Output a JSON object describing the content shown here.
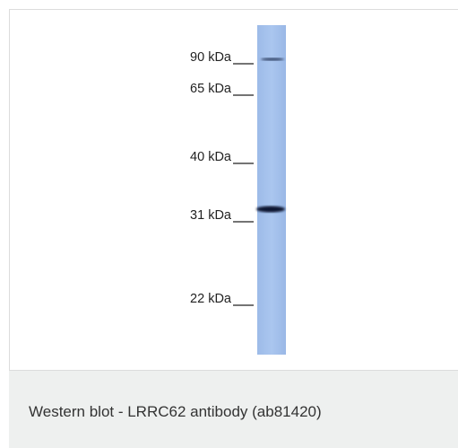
{
  "figure": {
    "markers": [
      "90 kDa",
      "65 kDa",
      "40 kDa",
      "31 kDa",
      "22 kDa"
    ]
  },
  "caption": "Western blot - LRRC62 antibody (ab81420)"
}
